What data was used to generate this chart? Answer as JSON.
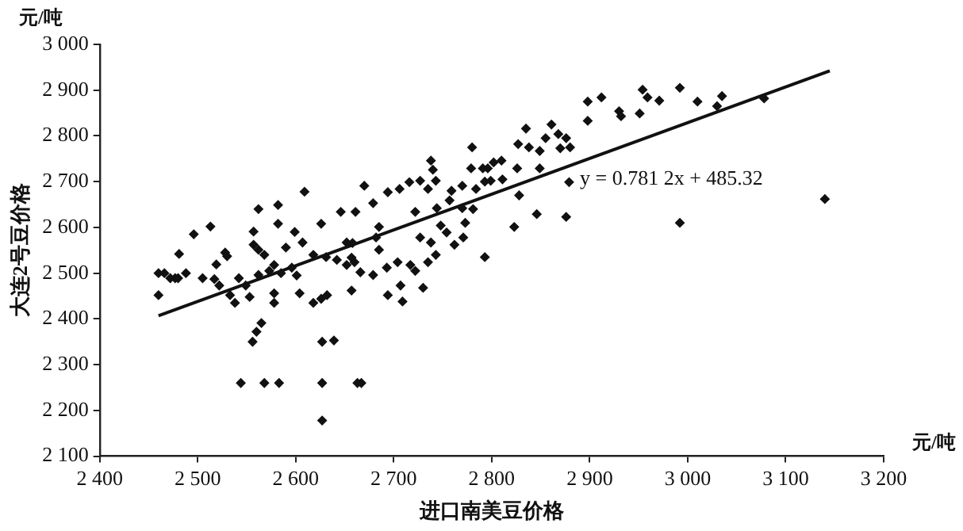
{
  "chart_data": {
    "type": "scatter",
    "xlabel": "进口南美豆价格",
    "ylabel": "大连2号豆价格",
    "annotations": [
      "元/吨",
      "元/吨",
      {
        "text": "y = 0.781 2x + 485.32",
        "x": 2890,
        "y": 2705
      }
    ],
    "xlim": [
      2400,
      3200
    ],
    "ylim": [
      2100,
      3000
    ],
    "xticks": [
      {
        "value": 2400,
        "label": "2 400"
      },
      {
        "value": 2500,
        "label": "2 500"
      },
      {
        "value": 2600,
        "label": "2 600"
      },
      {
        "value": 2700,
        "label": "2 700"
      },
      {
        "value": 2800,
        "label": "2 800"
      },
      {
        "value": 2900,
        "label": "2 900"
      },
      {
        "value": 3000,
        "label": "3 000"
      },
      {
        "value": 3100,
        "label": "3 100"
      },
      {
        "value": 3200,
        "label": "3 200"
      }
    ],
    "yticks": [
      {
        "value": 2100,
        "label": "2 100"
      },
      {
        "value": 2200,
        "label": "2 200"
      },
      {
        "value": 2300,
        "label": "2 300"
      },
      {
        "value": 2400,
        "label": "2 400"
      },
      {
        "value": 2500,
        "label": "2 500"
      },
      {
        "value": 2600,
        "label": "2 600"
      },
      {
        "value": 2700,
        "label": "2 700"
      },
      {
        "value": 2800,
        "label": "2 800"
      },
      {
        "value": 2900,
        "label": "2 900"
      },
      {
        "value": 3000,
        "label": "3 000"
      }
    ],
    "grid": false,
    "legend": false,
    "marker": "diamond",
    "series": [
      {
        "color": "#111111",
        "x": [
          2496,
          2513,
          2481,
          2562,
          2582,
          2582,
          2557,
          2609,
          2599,
          2626,
          2646,
          2661,
          2670,
          2679,
          2694,
          2706,
          2716,
          2727,
          2738,
          2740,
          2735,
          2743,
          2722,
          2744,
          2757,
          2748,
          2759,
          2770,
          2780,
          2779,
          2791,
          2802,
          2784,
          2793,
          2770,
          2773,
          2685,
          2658,
          2796,
          2827,
          2835,
          2838,
          2849,
          2861,
          2855,
          2868,
          2870,
          2876,
          2880,
          2898,
          2912,
          2898,
          2930,
          2932,
          2951,
          2954,
          2959,
          2971,
          2992,
          3010,
          3030,
          3035,
          3078,
          3140,
          2992,
          2879,
          2876,
          2846,
          2828,
          2823,
          2826,
          2810,
          2799,
          2811,
          2849,
          2781,
          2793,
          2460,
          2460,
          2466,
          2477,
          2472,
          2480,
          2488,
          2505,
          2517,
          2519,
          2522,
          2528,
          2530,
          2533,
          2538,
          2542,
          2544,
          2549,
          2553,
          2556,
          2560,
          2565,
          2568,
          2583,
          2557,
          2562,
          2568,
          2573,
          2578,
          2562,
          2585,
          2578,
          2578,
          2590,
          2596,
          2604,
          2601,
          2618,
          2626,
          2627,
          2627,
          2627,
          2639,
          2632,
          2618,
          2631,
          2642,
          2652,
          2660,
          2657,
          2666,
          2657,
          2663,
          2667,
          2679,
          2685,
          2693,
          2694,
          2704,
          2707,
          2709,
          2717,
          2722,
          2727,
          2730,
          2735,
          2738,
          2743,
          2754,
          2762,
          2771,
          2682,
          2652,
          2607
        ],
        "values": [
          2585,
          2602,
          2542,
          2640,
          2649,
          2608,
          2591,
          2678,
          2590,
          2608,
          2634,
          2634,
          2691,
          2653,
          2677,
          2684,
          2699,
          2702,
          2746,
          2726,
          2684,
          2702,
          2634,
          2642,
          2659,
          2604,
          2680,
          2691,
          2775,
          2729,
          2729,
          2742,
          2684,
          2700,
          2642,
          2610,
          2601,
          2566,
          2729,
          2782,
          2816,
          2775,
          2767,
          2825,
          2795,
          2804,
          2773,
          2795,
          2775,
          2875,
          2884,
          2833,
          2854,
          2843,
          2849,
          2901,
          2884,
          2877,
          2905,
          2875,
          2865,
          2887,
          2882,
          2662,
          2610,
          2699,
          2623,
          2629,
          2670,
          2601,
          2729,
          2746,
          2702,
          2705,
          2729,
          2640,
          2535,
          2452,
          2500,
          2500,
          2489,
          2489,
          2489,
          2500,
          2489,
          2487,
          2519,
          2473,
          2545,
          2537,
          2452,
          2435,
          2489,
          2260,
          2473,
          2448,
          2350,
          2372,
          2391,
          2260,
          2260,
          2562,
          2551,
          2540,
          2505,
          2518,
          2496,
          2500,
          2456,
          2435,
          2556,
          2512,
          2456,
          2495,
          2435,
          2444,
          2350,
          2260,
          2178,
          2353,
          2452,
          2540,
          2535,
          2529,
          2518,
          2524,
          2534,
          2502,
          2462,
          2260,
          2260,
          2496,
          2551,
          2512,
          2452,
          2524,
          2473,
          2438,
          2518,
          2505,
          2578,
          2468,
          2524,
          2567,
          2540,
          2589,
          2562,
          2578,
          2578,
          2567,
          2567
        ]
      },
      {
        "type": "line",
        "color": "#111111",
        "marker": "none",
        "x": [
          2460,
          3145
        ],
        "values": [
          2407,
          2942
        ]
      }
    ]
  }
}
